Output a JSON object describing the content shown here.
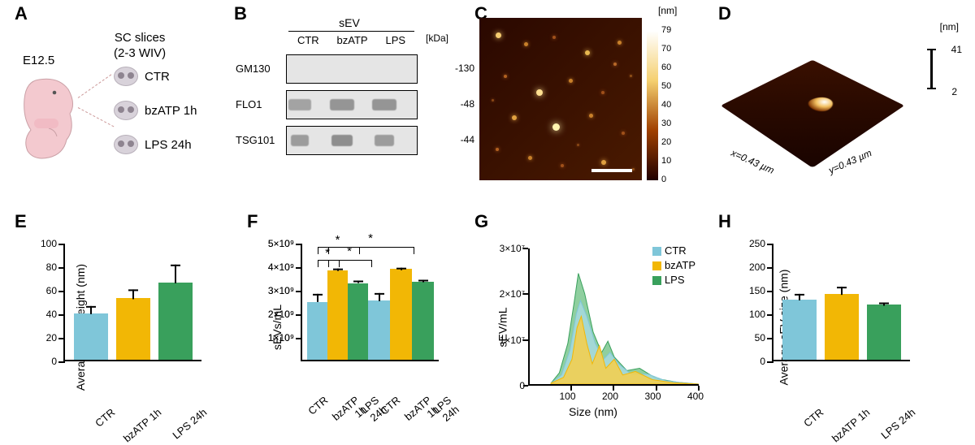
{
  "colors": {
    "ctr": "#7fc6d9",
    "bzatp": "#f2b705",
    "lps": "#39a05c",
    "ctr_fill": "#a9dbe7",
    "bzatp_fill": "#f7cf4a",
    "lps_fill": "#6abf7f"
  },
  "labels": {
    "A": "A",
    "B": "B",
    "C": "C",
    "D": "D",
    "E": "E",
    "F": "F",
    "G": "G",
    "H": "H"
  },
  "panelA": {
    "embryo_label": "E12.5",
    "header": "SC slices\n(2-3 WIV)",
    "rows": [
      "CTR",
      "bzATP 1h",
      "LPS 24h"
    ]
  },
  "panelB": {
    "title": "sEV",
    "lanes": [
      "CTR",
      "bzATP",
      "LPS"
    ],
    "kda_hdr": "[kDa]",
    "rows": [
      {
        "name": "GM130",
        "kda": "-130",
        "bands": []
      },
      {
        "name": "FLO1",
        "kda": "-48",
        "bands": [
          {
            "lane": 0,
            "w": 28,
            "op": 0.45
          },
          {
            "lane": 1,
            "w": 30,
            "op": 0.55
          },
          {
            "lane": 2,
            "w": 30,
            "op": 0.55
          }
        ]
      },
      {
        "name": "TSG101",
        "kda": "-44",
        "bands": [
          {
            "lane": 0,
            "w": 22,
            "op": 0.5
          },
          {
            "lane": 1,
            "w": 26,
            "op": 0.6
          },
          {
            "lane": 2,
            "w": 24,
            "op": 0.5
          }
        ]
      }
    ]
  },
  "panelC": {
    "unit": "[nm]",
    "ticks": [
      79,
      70,
      60,
      50,
      40,
      30,
      20,
      10,
      0
    ],
    "specks": [
      [
        20,
        18,
        7,
        "#f5cc70"
      ],
      [
        55,
        30,
        5,
        "#c8802a"
      ],
      [
        90,
        22,
        4,
        "#a0501a"
      ],
      [
        130,
        40,
        6,
        "#e8b850"
      ],
      [
        170,
        28,
        5,
        "#c8802a"
      ],
      [
        30,
        70,
        4,
        "#b26020"
      ],
      [
        70,
        88,
        8,
        "#ffe090"
      ],
      [
        110,
        75,
        5,
        "#c8802a"
      ],
      [
        150,
        90,
        4,
        "#a0501a"
      ],
      [
        185,
        70,
        3,
        "#905018"
      ],
      [
        40,
        120,
        6,
        "#e0a040"
      ],
      [
        90,
        130,
        9,
        "#fff4b0"
      ],
      [
        135,
        118,
        5,
        "#c8802a"
      ],
      [
        175,
        140,
        4,
        "#a0501a"
      ],
      [
        20,
        160,
        4,
        "#b26020"
      ],
      [
        60,
        170,
        5,
        "#c8802a"
      ],
      [
        100,
        180,
        4,
        "#a0501a"
      ],
      [
        150,
        175,
        6,
        "#e0a040"
      ],
      [
        188,
        185,
        3,
        "#905018"
      ],
      [
        15,
        100,
        3,
        "#8a4816"
      ],
      [
        120,
        155,
        3,
        "#8a4816"
      ],
      [
        165,
        55,
        4,
        "#b86828"
      ]
    ]
  },
  "panelD": {
    "unit": "[nm]",
    "max": "41",
    "min": "2",
    "x_axis": "x=0.43 µm",
    "y_axis": "y=0.43 µm"
  },
  "panelE": {
    "ylabel": "Average sEV height (nm)",
    "ymax": 100,
    "yticks": [
      0,
      20,
      40,
      60,
      80,
      100
    ],
    "cats": [
      "CTR",
      "bzATP 1h",
      "LPS 24h"
    ],
    "values": [
      38,
      51,
      64
    ],
    "errs": [
      7,
      8,
      16
    ],
    "colors": [
      "ctr",
      "bzatp",
      "lps"
    ]
  },
  "panelF": {
    "ylabel": "sEVs/mL",
    "ticklabels": [
      "1×10⁹",
      "2×10⁹",
      "3×10⁹",
      "4×10⁹",
      "5×10⁹"
    ],
    "ymax": 5,
    "yticks": [
      1,
      2,
      3,
      4,
      5
    ],
    "cats": [
      "CTR",
      "bzATP 1h",
      "LPS 24h"
    ],
    "values": [
      2.45,
      3.78,
      3.25
    ],
    "errs": [
      0.35,
      0.08,
      0.12
    ],
    "colors": [
      "ctr",
      "bzatp",
      "lps"
    ],
    "sig": [
      {
        "from": 0,
        "to": 1,
        "y": 4.3,
        "label": "*"
      },
      {
        "from": 0,
        "to": 2,
        "y": 4.85,
        "label": "*"
      }
    ]
  },
  "panelG": {
    "ylabel": "sEV/mL",
    "xlabel": "Size (nm)",
    "xmin": 0,
    "xmax": 400,
    "xticks": [
      100,
      200,
      300,
      400
    ],
    "ymax": 3,
    "yticklabels": [
      "0",
      "1×10⁷",
      "2×10⁷",
      "3×10⁷"
    ],
    "legend": [
      {
        "k": "CTR",
        "c": "ctr"
      },
      {
        "k": "bzATP",
        "c": "bzatp"
      },
      {
        "k": "LPS",
        "c": "lps"
      }
    ],
    "curves": {
      "lps": [
        [
          50,
          0.02
        ],
        [
          70,
          0.25
        ],
        [
          90,
          0.9
        ],
        [
          105,
          1.8
        ],
        [
          115,
          2.45
        ],
        [
          130,
          2.0
        ],
        [
          150,
          1.15
        ],
        [
          170,
          0.7
        ],
        [
          185,
          0.95
        ],
        [
          200,
          0.6
        ],
        [
          230,
          0.3
        ],
        [
          260,
          0.35
        ],
        [
          300,
          0.12
        ],
        [
          350,
          0.04
        ],
        [
          400,
          0
        ]
      ],
      "ctr": [
        [
          50,
          0.02
        ],
        [
          75,
          0.2
        ],
        [
          95,
          0.75
        ],
        [
          110,
          1.55
        ],
        [
          120,
          1.85
        ],
        [
          135,
          1.5
        ],
        [
          155,
          0.9
        ],
        [
          175,
          0.55
        ],
        [
          190,
          0.7
        ],
        [
          210,
          0.45
        ],
        [
          240,
          0.22
        ],
        [
          280,
          0.22
        ],
        [
          320,
          0.08
        ],
        [
          360,
          0.03
        ],
        [
          400,
          0
        ]
      ],
      "bzatp": [
        [
          50,
          0.02
        ],
        [
          80,
          0.15
        ],
        [
          100,
          0.55
        ],
        [
          112,
          1.25
        ],
        [
          122,
          1.5
        ],
        [
          135,
          0.9
        ],
        [
          148,
          0.45
        ],
        [
          165,
          0.85
        ],
        [
          180,
          0.35
        ],
        [
          200,
          0.55
        ],
        [
          220,
          0.2
        ],
        [
          250,
          0.28
        ],
        [
          290,
          0.1
        ],
        [
          340,
          0.03
        ],
        [
          400,
          0
        ]
      ]
    }
  },
  "panelH": {
    "ylabel": "Average sEV size (nm)",
    "ymax": 250,
    "yticks": [
      0,
      50,
      100,
      150,
      200,
      250
    ],
    "cats": [
      "CTR",
      "bzATP 1h",
      "LPS 24h"
    ],
    "values": [
      125,
      136,
      113
    ],
    "errs": [
      14,
      17,
      6
    ],
    "colors": [
      "ctr",
      "bzatp",
      "lps"
    ]
  }
}
